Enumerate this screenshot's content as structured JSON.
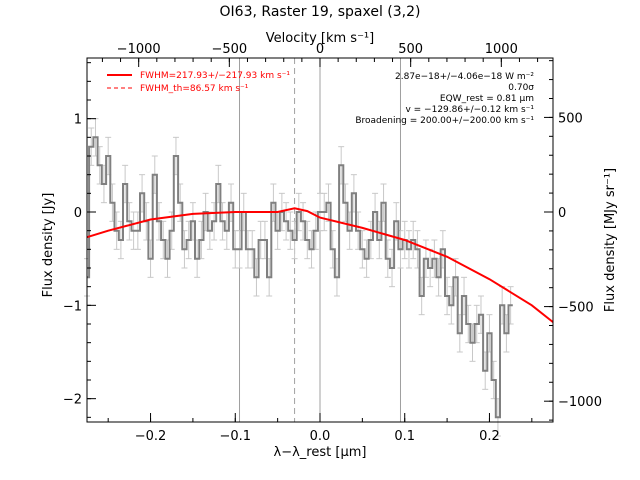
{
  "chart_data": {
    "type": "line",
    "title": "OI63, Raster 19, spaxel (3,2)",
    "xlabel": "λ−λ_rest [μm]",
    "ylabel": "Flux density [Jy]",
    "y2label": "Flux density [MJy sr⁻¹]",
    "top_xlabel": "Velocity [km s⁻¹]",
    "xlim": [
      -0.275,
      0.275
    ],
    "ylim": [
      -2.25,
      1.65
    ],
    "y2lim": [
      -1110,
      814
    ],
    "top_xlim": [
      -1285,
      1285
    ],
    "x_ticks": [
      -0.2,
      -0.1,
      0.0,
      0.1,
      0.2
    ],
    "x_tick_labels": [
      "−0.2",
      "−0.1",
      "0.0",
      "0.1",
      "0.2"
    ],
    "y_ticks": [
      -2,
      -1,
      0,
      1
    ],
    "y_tick_labels": [
      "−2",
      "−1",
      "0",
      "1"
    ],
    "y2_ticks": [
      -1000,
      -500,
      0,
      500
    ],
    "y2_tick_labels": [
      "−1000",
      "−500",
      "0",
      "500"
    ],
    "top_ticks": [
      -1000,
      -500,
      0,
      500,
      1000
    ],
    "top_tick_labels": [
      "−1000",
      "−500",
      "0",
      "500",
      "1000"
    ],
    "vlines_solid": [
      -0.095,
      0.0,
      0.095
    ],
    "vline_dashed": -0.03,
    "spectrum": {
      "x_start": -0.275,
      "x_step": 0.005,
      "flux": [
        -0.7,
        0.7,
        0.8,
        0.5,
        0.3,
        0.6,
        0.1,
        -0.2,
        -0.3,
        0.3,
        -0.1,
        -0.2,
        -0.2,
        0.2,
        -0.1,
        -0.5,
        0.4,
        -0.1,
        -0.3,
        -0.5,
        -0.2,
        0.6,
        0.1,
        -0.4,
        -0.3,
        -0.1,
        -0.5,
        -0.3,
        0.0,
        -0.2,
        -0.1,
        0.3,
        -0.1,
        -0.2,
        0.1,
        -0.4,
        -0.4,
        0.0,
        -0.4,
        -0.4,
        -0.7,
        -0.3,
        -0.3,
        -0.7,
        0.1,
        -0.2,
        0.0,
        -0.1,
        -0.2,
        -0.3,
        0.0,
        -0.1,
        -0.3,
        -0.4,
        -0.2,
        0.0,
        0.0,
        0.1,
        -0.4,
        -0.7,
        0.5,
        0.1,
        -0.2,
        0.2,
        -0.2,
        -0.4,
        -0.5,
        -0.3,
        0.0,
        -0.3,
        0.1,
        -0.5,
        -0.6,
        -0.1,
        -0.4,
        -0.3,
        -0.4,
        -0.3,
        -0.4,
        -0.9,
        -0.5,
        -0.6,
        -0.5,
        -0.7,
        -0.4,
        -0.9,
        -1.0,
        -0.7,
        -1.3,
        -0.9,
        -1.2,
        -1.4,
        -1.2,
        -1.1,
        -1.7,
        -1.3,
        -1.8,
        -2.2,
        -1.0,
        -1.3,
        -1.0
      ],
      "err": 0.2
    },
    "model_fit": {
      "x": [
        -0.275,
        -0.25,
        -0.2,
        -0.15,
        -0.1,
        -0.05,
        -0.03,
        -0.015,
        0.0,
        0.05,
        0.1,
        0.15,
        0.2,
        0.25,
        0.275
      ],
      "y": [
        -0.27,
        -0.2,
        -0.08,
        -0.02,
        0.0,
        0.0,
        0.04,
        0.01,
        -0.06,
        -0.17,
        -0.3,
        -0.48,
        -0.72,
        -1.0,
        -1.18
      ]
    },
    "legend": [
      {
        "label": "FWHM=217.93+/−217.93 km s⁻¹",
        "style": "solid"
      },
      {
        "label": "FWHM_th=86.57 km s⁻¹",
        "style": "dashed"
      }
    ],
    "legend_position": "top-left",
    "annotations": [
      "2.87e−18+/−4.06e−18 W m⁻²",
      "0.70σ",
      "EQW_rest = 0.81 μm",
      "v = −129.86+/−0.12 km s⁻¹",
      "Broadening = 200.00+/−200.00 km s⁻¹"
    ],
    "colors": {
      "spectrum": "#808080",
      "errorbar": "#c8c8c8",
      "model": "#ff0000",
      "guide": "#a0a0a0",
      "axes": "#000000"
    }
  }
}
